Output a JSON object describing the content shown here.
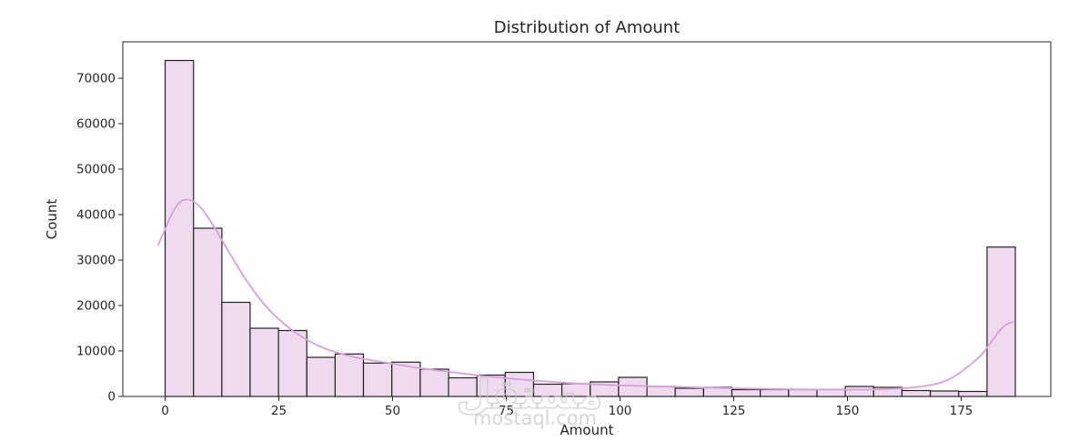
{
  "chart_data": {
    "type": "bar",
    "subtype": "histogram_with_kde",
    "title": "Distribution of Amount",
    "xlabel": "Amount",
    "ylabel": "Count",
    "x_ticks": [
      0,
      25,
      50,
      75,
      100,
      125,
      150,
      175
    ],
    "y_ticks": [
      0,
      10000,
      20000,
      30000,
      40000,
      50000,
      60000,
      70000
    ],
    "xlim": [
      -9.3,
      194.7
    ],
    "ylim": [
      0,
      78000
    ],
    "grid": "off",
    "legend": "none",
    "bins": {
      "start": 0,
      "width": 6.23,
      "counts": [
        73900,
        37000,
        20700,
        15000,
        14500,
        8600,
        9350,
        7350,
        7550,
        6000,
        4100,
        4700,
        5300,
        2700,
        2800,
        3200,
        4200,
        2200,
        1800,
        2000,
        1500,
        1500,
        1500,
        1550,
        2200,
        2000,
        1300,
        1200,
        1100,
        32860
      ]
    },
    "kde_points": [
      [
        -1.6,
        33200
      ],
      [
        0,
        36800
      ],
      [
        1.5,
        40200
      ],
      [
        3,
        42500
      ],
      [
        4.5,
        43300
      ],
      [
        6,
        43000
      ],
      [
        7.5,
        41900
      ],
      [
        9,
        40000
      ],
      [
        11,
        36900
      ],
      [
        13,
        33500
      ],
      [
        15,
        30100
      ],
      [
        17,
        26900
      ],
      [
        19,
        23900
      ],
      [
        21,
        21200
      ],
      [
        23.5,
        18400
      ],
      [
        26,
        16100
      ],
      [
        29,
        13800
      ],
      [
        32,
        12000
      ],
      [
        35,
        10600
      ],
      [
        38,
        9600
      ],
      [
        41,
        8800
      ],
      [
        44,
        8200
      ],
      [
        47,
        7700
      ],
      [
        50,
        7200
      ],
      [
        53,
        6700
      ],
      [
        57,
        6100
      ],
      [
        61,
        5600
      ],
      [
        65,
        5100
      ],
      [
        69,
        4600
      ],
      [
        73,
        4200
      ],
      [
        77,
        3850
      ],
      [
        81,
        3500
      ],
      [
        85,
        3200
      ],
      [
        89,
        2950
      ],
      [
        93,
        2750
      ],
      [
        97,
        2550
      ],
      [
        101,
        2400
      ],
      [
        105,
        2300
      ],
      [
        109,
        2200
      ],
      [
        113,
        2100
      ],
      [
        118,
        1950
      ],
      [
        123,
        1850
      ],
      [
        128,
        1750
      ],
      [
        133,
        1650
      ],
      [
        138,
        1580
      ],
      [
        143,
        1520
      ],
      [
        148,
        1500
      ],
      [
        152,
        1500
      ],
      [
        156,
        1550
      ],
      [
        159,
        1650
      ],
      [
        162,
        1800
      ],
      [
        165,
        2050
      ],
      [
        168,
        2450
      ],
      [
        171,
        3200
      ],
      [
        173.5,
        4400
      ],
      [
        176,
        6200
      ],
      [
        178,
        7800
      ],
      [
        179.5,
        9200
      ],
      [
        181,
        11200
      ],
      [
        182.5,
        13200
      ],
      [
        184,
        15100
      ],
      [
        185.3,
        16000
      ],
      [
        186.5,
        16400
      ]
    ],
    "colors": {
      "bar_fill": "#f0daf0",
      "bar_edge": "#222222",
      "kde_line": "#d7a0d7",
      "spine": "#262626",
      "text": "#262626",
      "watermark": "#cccccc"
    }
  },
  "watermark": {
    "logo": "مستقل",
    "text": "mostaql.com"
  }
}
